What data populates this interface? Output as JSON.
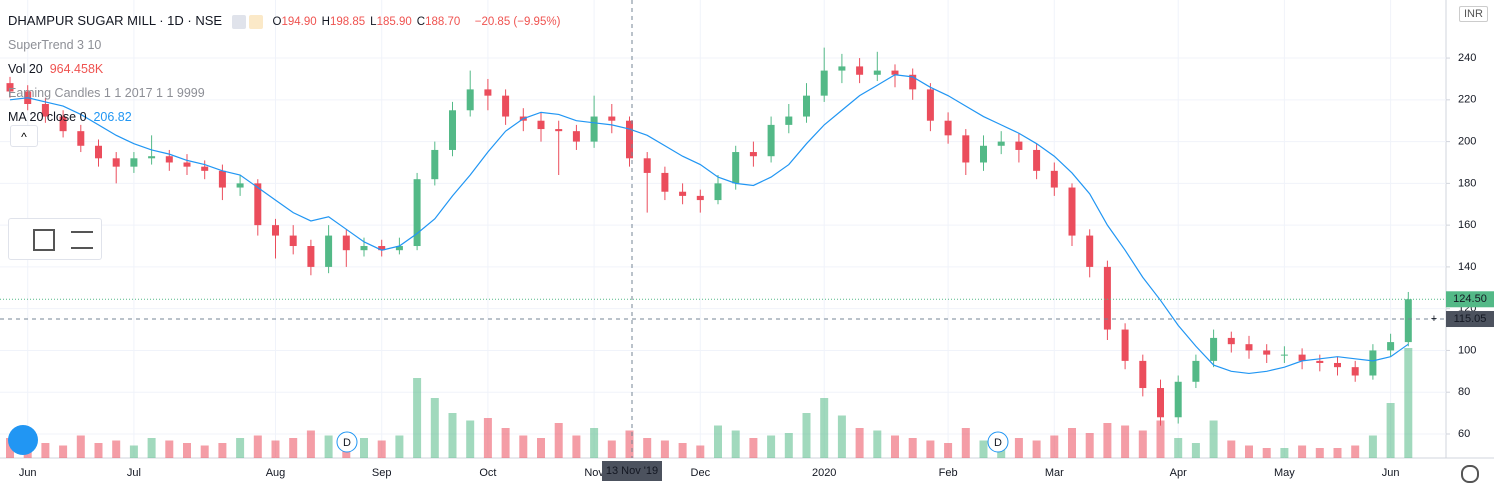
{
  "chart_data": {
    "type": "candlestick",
    "title": "DHAMPUR SUGAR MILL · 1D · NSE",
    "ohlc": [
      {
        "label": "O",
        "value": "194.90"
      },
      {
        "label": "H",
        "value": "198.85"
      },
      {
        "label": "L",
        "value": "185.90"
      },
      {
        "label": "C",
        "value": "188.70"
      }
    ],
    "change": "−20.85 (−9.95%)",
    "indicators": [
      "SuperTrend 3 10",
      "Earning Candles 1 1 2017 1 1 9999"
    ],
    "currency": "INR",
    "up_color": "#53b987",
    "down_color": "#eb4d5c",
    "categories": [
      null,
      "Jun",
      null,
      null,
      null,
      null,
      null,
      "Jul",
      null,
      null,
      null,
      null,
      null,
      null,
      null,
      "Aug",
      null,
      null,
      null,
      null,
      null,
      "Sep",
      null,
      null,
      null,
      null,
      null,
      "Oct",
      null,
      null,
      null,
      null,
      null,
      "Nov",
      null,
      null,
      null,
      null,
      null,
      "Dec",
      null,
      null,
      null,
      null,
      null,
      null,
      "2020",
      null,
      null,
      null,
      null,
      null,
      null,
      "Feb",
      null,
      null,
      null,
      null,
      null,
      "Mar",
      null,
      null,
      null,
      null,
      null,
      null,
      "Apr",
      null,
      null,
      null,
      null,
      null,
      "May",
      null,
      null,
      null,
      null,
      null,
      "Jun",
      null
    ],
    "open": [
      228,
      224,
      218,
      212,
      205,
      198,
      192,
      188,
      192,
      193,
      190,
      188,
      186,
      178,
      180,
      160,
      155,
      150,
      140,
      155,
      148,
      150,
      148,
      150,
      182,
      196,
      215,
      225,
      222,
      212,
      210,
      206,
      205,
      200,
      212,
      210,
      192,
      185,
      176,
      174,
      172,
      180,
      195,
      193,
      208,
      212,
      222,
      234,
      236,
      232,
      234,
      232,
      225,
      210,
      203,
      190,
      198,
      200,
      196,
      186,
      178,
      155,
      140,
      110,
      95,
      82,
      68,
      85,
      95,
      106,
      103,
      100,
      98,
      98,
      95,
      94,
      92,
      88,
      100,
      104
    ],
    "high": [
      231,
      227,
      221,
      215,
      208,
      201,
      195,
      195,
      203,
      196,
      194,
      191,
      189,
      184,
      182,
      163,
      160,
      153,
      160,
      158,
      154,
      153,
      154,
      185,
      200,
      219,
      234,
      230,
      225,
      216,
      214,
      210,
      208,
      222,
      218,
      212,
      195,
      188,
      180,
      177,
      184,
      198,
      200,
      212,
      218,
      228,
      245,
      242,
      240,
      243,
      237,
      235,
      228,
      214,
      206,
      203,
      205,
      204,
      199,
      190,
      180,
      158,
      143,
      113,
      98,
      86,
      88,
      98,
      110,
      109,
      107,
      103,
      102,
      101,
      98,
      97,
      95,
      103,
      108,
      128
    ],
    "low": [
      221,
      215,
      209,
      202,
      195,
      188,
      180,
      185,
      189,
      186,
      184,
      182,
      172,
      174,
      155,
      144,
      146,
      136,
      137,
      140,
      145,
      145,
      146,
      148,
      179,
      193,
      212,
      215,
      208,
      205,
      200,
      184,
      196,
      197,
      204,
      188,
      166,
      172,
      170,
      166,
      170,
      177,
      188,
      190,
      204,
      209,
      219,
      228,
      228,
      229,
      226,
      220,
      205,
      199,
      184,
      186,
      194,
      190,
      182,
      174,
      150,
      135,
      105,
      91,
      78,
      64,
      65,
      82,
      92,
      99,
      96,
      94,
      94,
      91,
      90,
      88,
      85,
      86,
      97,
      102
    ],
    "close": [
      224,
      218,
      212,
      205,
      198,
      192,
      188,
      192,
      193,
      190,
      188,
      186,
      178,
      180,
      160,
      155,
      150,
      140,
      155,
      148,
      150,
      148,
      150,
      182,
      196,
      215,
      225,
      222,
      212,
      210,
      206,
      205,
      200,
      212,
      210,
      192,
      185,
      176,
      174,
      172,
      180,
      195,
      193,
      208,
      212,
      222,
      234,
      236,
      232,
      234,
      232,
      225,
      210,
      203,
      190,
      198,
      200,
      196,
      186,
      178,
      155,
      140,
      110,
      95,
      82,
      68,
      85,
      95,
      106,
      103,
      100,
      98,
      98,
      95,
      94,
      92,
      88,
      100,
      104,
      124.5
    ],
    "volume": {
      "name": "Vol 20",
      "value_label": "964.458K",
      "values": [
        800,
        700,
        600,
        500,
        900,
        600,
        700,
        500,
        800,
        700,
        600,
        500,
        600,
        800,
        900,
        700,
        800,
        1100,
        900,
        600,
        800,
        700,
        900,
        3200,
        2400,
        1800,
        1500,
        1600,
        1200,
        900,
        800,
        1400,
        900,
        1200,
        700,
        1100,
        800,
        700,
        600,
        500,
        1300,
        1100,
        800,
        900,
        1000,
        1800,
        2400,
        1700,
        1200,
        1100,
        900,
        800,
        700,
        600,
        1200,
        700,
        900,
        800,
        700,
        900,
        1200,
        1000,
        1400,
        1300,
        1100,
        1500,
        800,
        600,
        1500,
        700,
        500,
        400,
        400,
        500,
        400,
        400,
        500,
        900,
        2200,
        4400
      ]
    },
    "ma": {
      "name": "MA 20 close 0",
      "value_label": "206.82",
      "color": "#2196f3",
      "values": [
        220,
        221,
        219,
        217,
        213,
        208,
        203,
        199,
        196,
        194,
        191,
        189,
        186,
        184,
        178,
        172,
        166,
        162,
        164,
        158,
        152,
        148,
        150,
        156,
        163,
        174,
        184,
        195,
        205,
        211,
        214,
        213,
        210,
        209,
        208,
        206,
        203,
        198,
        193,
        189,
        183,
        180,
        179,
        183,
        189,
        199,
        208,
        215,
        222,
        227,
        232,
        231,
        226,
        222,
        217,
        212,
        208,
        204,
        199,
        193,
        185,
        175,
        160,
        148,
        135,
        124,
        112,
        102,
        93,
        90,
        89,
        90,
        92,
        95,
        96,
        97,
        96,
        95,
        97,
        103
      ]
    },
    "markers": [
      "D",
      "D"
    ],
    "ylim": [
      48.5,
      267.8
    ],
    "yticks": [
      60,
      80,
      100,
      120,
      140,
      160,
      180,
      200,
      220,
      240
    ],
    "last_price": {
      "value": 124.5,
      "label": "124.50"
    },
    "crosshair": {
      "price": 115.05,
      "date_label": "13 Nov '19"
    },
    "grid": true
  }
}
